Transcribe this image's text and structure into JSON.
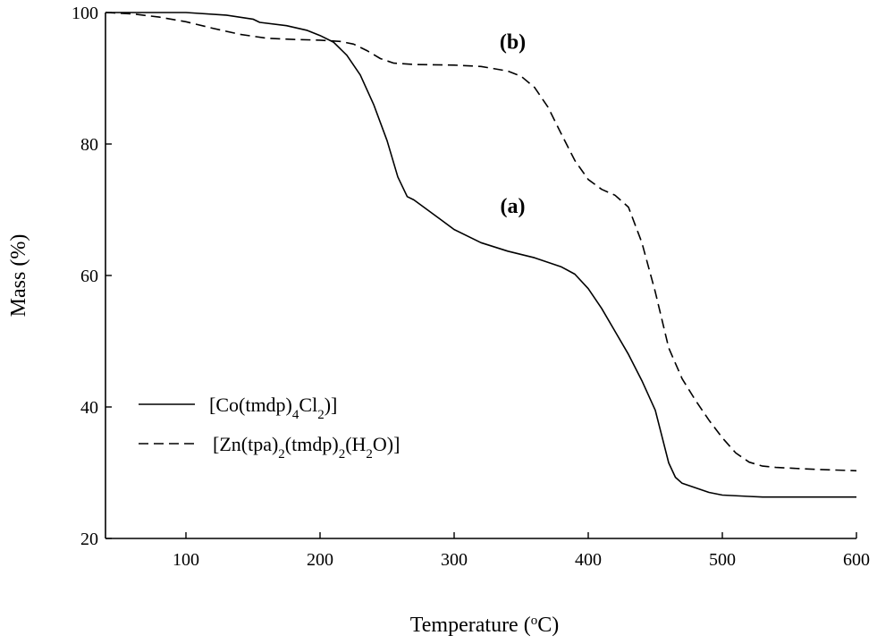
{
  "chart_data": {
    "type": "line",
    "xlabel": {
      "main": "Temperature (",
      "sup": "o",
      "tail": "C)"
    },
    "ylabel": "Mass (%)",
    "xlim": [
      40,
      600
    ],
    "ylim": [
      20,
      100
    ],
    "xticks": [
      100,
      200,
      300,
      400,
      500,
      600
    ],
    "yticks": [
      20,
      40,
      60,
      80,
      100
    ],
    "grid": false,
    "legend_position": "lower-left",
    "annotations": [
      {
        "label": "(a)",
        "x": 343,
        "y": 69.5
      },
      {
        "label": "(b)",
        "x": 343,
        "y": 94.5
      }
    ],
    "series": [
      {
        "key": "a",
        "legend": [
          {
            "t": "[Co(tmdp)"
          },
          {
            "t": "4",
            "sub": true
          },
          {
            "t": "Cl"
          },
          {
            "t": "2",
            "sub": true
          },
          {
            "t": ")]"
          }
        ],
        "style": "solid",
        "color": "#000000",
        "points": [
          [
            40,
            100
          ],
          [
            100,
            100
          ],
          [
            130,
            99.6
          ],
          [
            150,
            99
          ],
          [
            155,
            98.5
          ],
          [
            175,
            98
          ],
          [
            190,
            97.3
          ],
          [
            200,
            96.5
          ],
          [
            210,
            95.5
          ],
          [
            220,
            93.5
          ],
          [
            230,
            90.5
          ],
          [
            240,
            86
          ],
          [
            250,
            80.5
          ],
          [
            258,
            75
          ],
          [
            265,
            72
          ],
          [
            270,
            71.5
          ],
          [
            280,
            70
          ],
          [
            290,
            68.5
          ],
          [
            300,
            67
          ],
          [
            320,
            65
          ],
          [
            340,
            63.7
          ],
          [
            360,
            62.7
          ],
          [
            380,
            61.3
          ],
          [
            390,
            60.2
          ],
          [
            400,
            58
          ],
          [
            410,
            55
          ],
          [
            420,
            51.5
          ],
          [
            430,
            48
          ],
          [
            440,
            44
          ],
          [
            450,
            39.5
          ],
          [
            455,
            35.5
          ],
          [
            460,
            31.5
          ],
          [
            465,
            29.3
          ],
          [
            470,
            28.4
          ],
          [
            480,
            27.7
          ],
          [
            490,
            27
          ],
          [
            500,
            26.6
          ],
          [
            520,
            26.4
          ],
          [
            530,
            26.3
          ],
          [
            560,
            26.3
          ],
          [
            600,
            26.3
          ]
        ]
      },
      {
        "key": "b",
        "legend": [
          {
            "t": "[Zn(tpa)"
          },
          {
            "t": "2",
            "sub": true
          },
          {
            "t": "(tmdp)"
          },
          {
            "t": "2",
            "sub": true
          },
          {
            "t": "(H"
          },
          {
            "t": "2",
            "sub": true
          },
          {
            "t": "O)]"
          }
        ],
        "style": "dashed",
        "color": "#000000",
        "points": [
          [
            40,
            100
          ],
          [
            60,
            99.8
          ],
          [
            80,
            99.3
          ],
          [
            100,
            98.6
          ],
          [
            120,
            97.6
          ],
          [
            140,
            96.7
          ],
          [
            160,
            96.1
          ],
          [
            180,
            95.9
          ],
          [
            200,
            95.8
          ],
          [
            215,
            95.6
          ],
          [
            225,
            95.2
          ],
          [
            235,
            94.2
          ],
          [
            245,
            93
          ],
          [
            255,
            92.3
          ],
          [
            270,
            92.1
          ],
          [
            300,
            92
          ],
          [
            320,
            91.8
          ],
          [
            340,
            91.1
          ],
          [
            350,
            90.3
          ],
          [
            360,
            88.6
          ],
          [
            370,
            85.6
          ],
          [
            380,
            81.5
          ],
          [
            390,
            77.5
          ],
          [
            400,
            74.6
          ],
          [
            410,
            73.1
          ],
          [
            420,
            72.2
          ],
          [
            430,
            70.4
          ],
          [
            440,
            65
          ],
          [
            450,
            57.5
          ],
          [
            460,
            49
          ],
          [
            470,
            44.3
          ],
          [
            480,
            41
          ],
          [
            490,
            38
          ],
          [
            500,
            35.3
          ],
          [
            510,
            33
          ],
          [
            520,
            31.6
          ],
          [
            530,
            31
          ],
          [
            540,
            30.8
          ],
          [
            570,
            30.5
          ],
          [
            600,
            30.3
          ]
        ]
      }
    ]
  }
}
